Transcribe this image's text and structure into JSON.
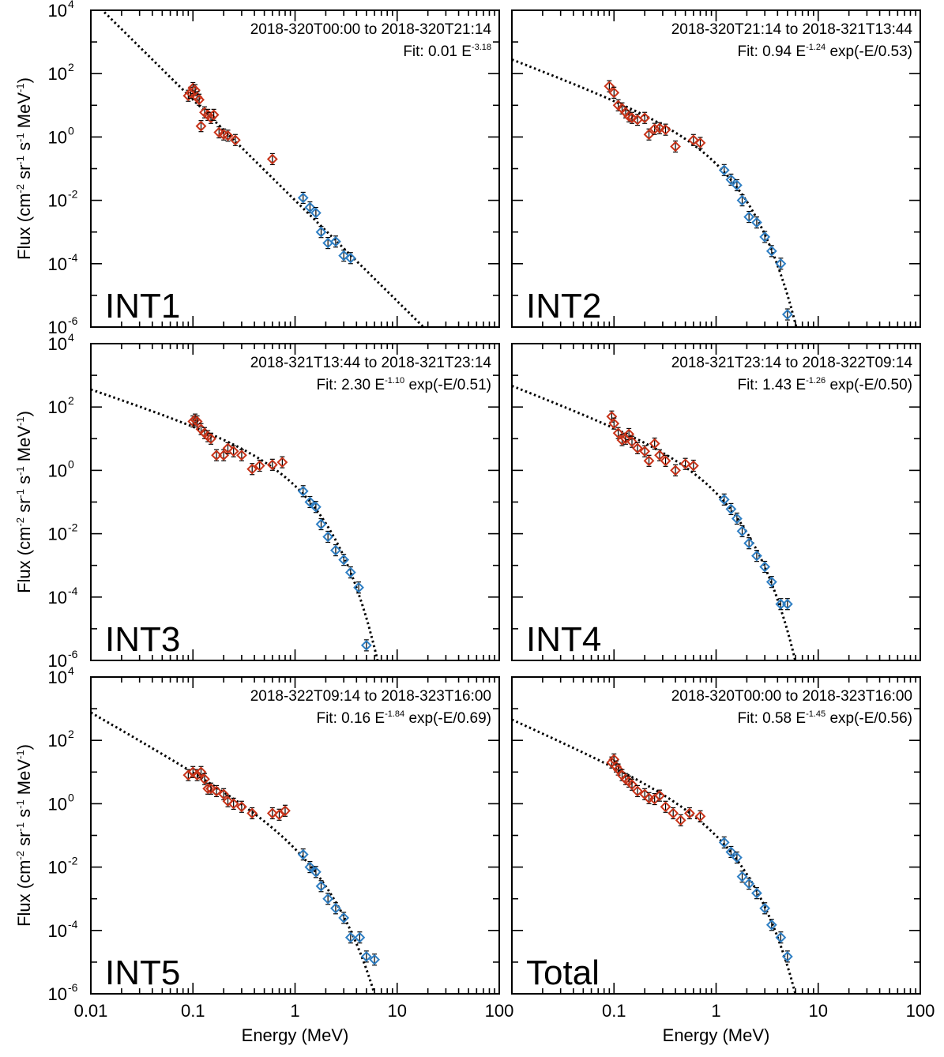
{
  "chart_data": {
    "type": "scatter",
    "layout": "3x2 grid",
    "xlabel": "Energy (MeV)",
    "ylabel": "Flux (cm-2 sr-1 s-1 MeV-1)",
    "xscale": "log",
    "yscale": "log",
    "xlim": [
      0.01,
      100
    ],
    "ylim": [
      1e-06,
      10000
    ],
    "x_ticks": [
      "0.01",
      "0.1",
      "1",
      "10",
      "100"
    ],
    "y_ticks": [
      {
        "base": "10",
        "exp": "4"
      },
      {
        "base": "10",
        "exp": "2"
      },
      {
        "base": "10",
        "exp": "0"
      },
      {
        "base": "10",
        "exp": "-2"
      },
      {
        "base": "10",
        "exp": "-4"
      },
      {
        "base": "10",
        "exp": "-6"
      }
    ],
    "colors": {
      "low_energy": "#c8341a",
      "high_energy": "#2f7fc4",
      "fit": "#000000"
    },
    "panels": [
      {
        "label": "INT1",
        "period": "2018-320T00:00 to 2018-320T21:14",
        "fit": {
          "prefix": "Fit: 0.01 E",
          "exponent": "-3.18",
          "suffix": "",
          "A": 0.01,
          "gamma": 3.18,
          "E0": null
        },
        "red": [
          [
            0.09,
            20
          ],
          [
            0.095,
            25
          ],
          [
            0.1,
            35
          ],
          [
            0.105,
            30
          ],
          [
            0.11,
            18
          ],
          [
            0.115,
            15
          ],
          [
            0.12,
            2.2
          ],
          [
            0.13,
            6
          ],
          [
            0.14,
            5
          ],
          [
            0.15,
            4
          ],
          [
            0.16,
            5
          ],
          [
            0.18,
            1.4
          ],
          [
            0.2,
            1.2
          ],
          [
            0.22,
            1.1
          ],
          [
            0.26,
            0.8
          ],
          [
            0.6,
            0.2
          ]
        ],
        "blue": [
          [
            1.2,
            0.012
          ],
          [
            1.4,
            0.006
          ],
          [
            1.6,
            0.004
          ],
          [
            1.8,
            0.001
          ],
          [
            2.1,
            0.00045
          ],
          [
            2.5,
            0.0005
          ],
          [
            3.0,
            0.00018
          ],
          [
            3.5,
            0.00015
          ]
        ]
      },
      {
        "label": "INT2",
        "period": "2018-320T21:14 to 2018-321T13:44",
        "fit": {
          "prefix": "Fit: 0.94 E",
          "exponent": "-1.24",
          "suffix": " exp(-E/0.53)",
          "A": 0.94,
          "gamma": 1.24,
          "E0": 0.53
        },
        "red": [
          [
            0.09,
            40
          ],
          [
            0.1,
            25
          ],
          [
            0.11,
            10
          ],
          [
            0.12,
            8
          ],
          [
            0.13,
            6
          ],
          [
            0.14,
            4.5
          ],
          [
            0.15,
            4
          ],
          [
            0.17,
            3.5
          ],
          [
            0.2,
            4
          ],
          [
            0.22,
            1.2
          ],
          [
            0.25,
            1.8
          ],
          [
            0.28,
            1.9
          ],
          [
            0.32,
            1.7
          ],
          [
            0.4,
            0.5
          ],
          [
            0.6,
            0.8
          ],
          [
            0.7,
            0.65
          ]
        ],
        "blue": [
          [
            1.2,
            0.09
          ],
          [
            1.4,
            0.045
          ],
          [
            1.6,
            0.03
          ],
          [
            1.8,
            0.01
          ],
          [
            2.1,
            0.003
          ],
          [
            2.5,
            0.002
          ],
          [
            3.0,
            0.0007
          ],
          [
            3.5,
            0.00025
          ],
          [
            4.3,
            0.0001
          ],
          [
            5.0,
            2.5e-06
          ]
        ]
      },
      {
        "label": "INT3",
        "period": "2018-321T13:44 to 2018-321T23:14",
        "fit": {
          "prefix": "Fit: 2.30 E",
          "exponent": "-1.10",
          "suffix": " exp(-E/0.51)",
          "A": 2.3,
          "gamma": 1.1,
          "E0": 0.51
        },
        "red": [
          [
            0.1,
            35
          ],
          [
            0.105,
            40
          ],
          [
            0.11,
            35
          ],
          [
            0.12,
            20
          ],
          [
            0.13,
            15
          ],
          [
            0.14,
            12
          ],
          [
            0.15,
            10
          ],
          [
            0.17,
            3
          ],
          [
            0.2,
            3
          ],
          [
            0.22,
            5
          ],
          [
            0.25,
            4
          ],
          [
            0.3,
            3
          ],
          [
            0.38,
            1.1
          ],
          [
            0.45,
            1.4
          ],
          [
            0.6,
            1.5
          ],
          [
            0.75,
            1.8
          ]
        ],
        "blue": [
          [
            1.2,
            0.22
          ],
          [
            1.4,
            0.1
          ],
          [
            1.6,
            0.07
          ],
          [
            1.8,
            0.02
          ],
          [
            2.1,
            0.008
          ],
          [
            2.5,
            0.003
          ],
          [
            3.0,
            0.0015
          ],
          [
            3.5,
            0.0006
          ],
          [
            4.2,
            0.0002
          ],
          [
            5.0,
            3e-06
          ]
        ]
      },
      {
        "label": "INT4",
        "period": "2018-321T23:14 to 2018-322T09:14",
        "fit": {
          "prefix": "Fit: 1.43 E",
          "exponent": "-1.26",
          "suffix": " exp(-E/0.50)",
          "A": 1.43,
          "gamma": 1.26,
          "E0": 0.5
        },
        "red": [
          [
            0.095,
            50
          ],
          [
            0.1,
            30
          ],
          [
            0.11,
            15
          ],
          [
            0.12,
            9
          ],
          [
            0.13,
            10
          ],
          [
            0.14,
            14
          ],
          [
            0.15,
            8
          ],
          [
            0.17,
            5
          ],
          [
            0.2,
            4
          ],
          [
            0.22,
            2
          ],
          [
            0.25,
            7
          ],
          [
            0.28,
            3
          ],
          [
            0.32,
            2
          ],
          [
            0.4,
            1
          ],
          [
            0.5,
            1.6
          ],
          [
            0.6,
            1.4
          ]
        ],
        "blue": [
          [
            1.2,
            0.12
          ],
          [
            1.4,
            0.06
          ],
          [
            1.6,
            0.03
          ],
          [
            1.8,
            0.012
          ],
          [
            2.1,
            0.005
          ],
          [
            2.5,
            0.002
          ],
          [
            3.0,
            0.0009
          ],
          [
            3.5,
            0.0003
          ],
          [
            4.3,
            6e-05
          ],
          [
            5.0,
            6e-05
          ]
        ]
      },
      {
        "label": "INT5",
        "period": "2018-322T09:14 to 2018-323T16:00",
        "fit": {
          "prefix": "Fit: 0.16 E",
          "exponent": "-1.84",
          "suffix": " exp(-E/0.69)",
          "A": 0.16,
          "gamma": 1.84,
          "E0": 0.69
        },
        "red": [
          [
            0.09,
            8
          ],
          [
            0.1,
            10
          ],
          [
            0.11,
            8
          ],
          [
            0.12,
            10
          ],
          [
            0.13,
            6
          ],
          [
            0.14,
            3
          ],
          [
            0.15,
            3
          ],
          [
            0.17,
            2.5
          ],
          [
            0.2,
            2
          ],
          [
            0.22,
            1.2
          ],
          [
            0.25,
            1
          ],
          [
            0.3,
            0.8
          ],
          [
            0.38,
            0.5
          ],
          [
            0.6,
            0.5
          ],
          [
            0.7,
            0.45
          ],
          [
            0.8,
            0.6
          ]
        ],
        "blue": [
          [
            1.2,
            0.025
          ],
          [
            1.4,
            0.01
          ],
          [
            1.6,
            0.007
          ],
          [
            1.8,
            0.0025
          ],
          [
            2.1,
            0.001
          ],
          [
            2.5,
            0.0005
          ],
          [
            3.0,
            0.00025
          ],
          [
            3.5,
            6e-05
          ],
          [
            4.3,
            6e-05
          ],
          [
            5.0,
            1.5e-05
          ],
          [
            6.0,
            1.2e-05
          ]
        ]
      },
      {
        "label": "Total",
        "period": "2018-320T00:00 to 2018-323T16:00",
        "fit": {
          "prefix": "Fit: 0.58 E",
          "exponent": "-1.45",
          "suffix": " exp(-E/0.56)",
          "A": 0.58,
          "gamma": 1.45,
          "E0": 0.56
        },
        "red": [
          [
            0.095,
            20
          ],
          [
            0.1,
            25
          ],
          [
            0.105,
            15
          ],
          [
            0.11,
            12
          ],
          [
            0.12,
            8
          ],
          [
            0.13,
            6
          ],
          [
            0.14,
            5
          ],
          [
            0.15,
            4
          ],
          [
            0.17,
            2.5
          ],
          [
            0.2,
            2
          ],
          [
            0.22,
            1.5
          ],
          [
            0.25,
            1.4
          ],
          [
            0.28,
            1.8
          ],
          [
            0.32,
            0.8
          ],
          [
            0.38,
            0.5
          ],
          [
            0.45,
            0.3
          ],
          [
            0.55,
            0.5
          ],
          [
            0.7,
            0.4
          ]
        ],
        "blue": [
          [
            1.2,
            0.06
          ],
          [
            1.4,
            0.03
          ],
          [
            1.6,
            0.02
          ],
          [
            1.8,
            0.005
          ],
          [
            2.1,
            0.003
          ],
          [
            2.5,
            0.0015
          ],
          [
            3.0,
            0.0005
          ],
          [
            3.5,
            0.00015
          ],
          [
            4.3,
            6e-05
          ],
          [
            5.0,
            1.5e-05
          ]
        ]
      }
    ]
  }
}
